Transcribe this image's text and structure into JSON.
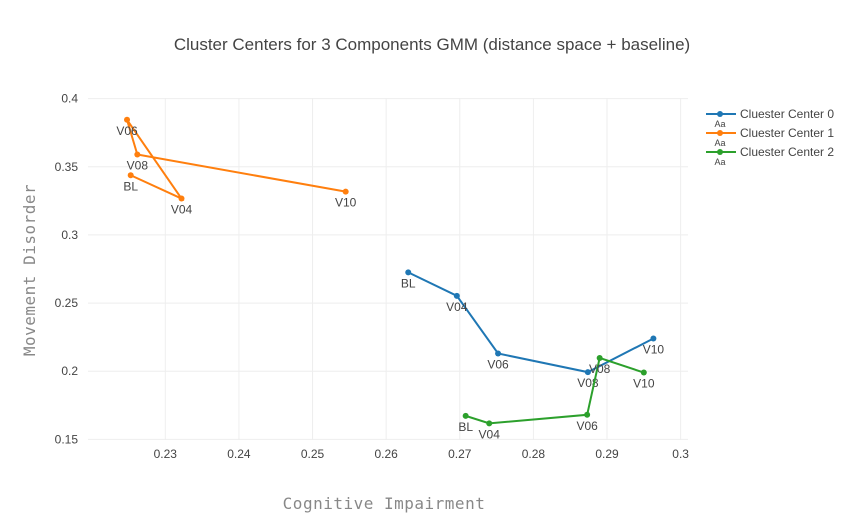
{
  "chart_data": {
    "type": "line",
    "title": "Cluster Centers for 3 Components GMM (distance space + baseline)",
    "xlabel": "Cognitive Impairment",
    "ylabel": "Movement Disorder",
    "xlim": [
      0.2195,
      0.301
    ],
    "ylim": [
      0.1495,
      0.4005
    ],
    "xticks": [
      0.23,
      0.24,
      0.25,
      0.26,
      0.27,
      0.28,
      0.29,
      0.3
    ],
    "xtick_labels": [
      "0.23",
      "0.24",
      "0.25",
      "0.26",
      "0.27",
      "0.28",
      "0.29",
      "0.3"
    ],
    "yticks": [
      0.15,
      0.2,
      0.25,
      0.3,
      0.35,
      0.4
    ],
    "ytick_labels": [
      "0.15",
      "0.2",
      "0.25",
      "0.3",
      "0.35",
      "0.4"
    ],
    "grid": true,
    "legend_position": "top-right",
    "legend_symbol_text": "Aa",
    "series": [
      {
        "name": "Cluester Center 0",
        "color": "#1f77b4",
        "labels": [
          "BL",
          "V04",
          "V06",
          "V08",
          "V10"
        ],
        "x": [
          0.263,
          0.2696,
          0.2752,
          0.2874,
          0.2963
        ],
        "y": [
          0.2725,
          0.2553,
          0.213,
          0.1993,
          0.224
        ]
      },
      {
        "name": "Cluester Center 1",
        "color": "#ff7f0e",
        "labels": [
          "BL",
          "V04",
          "V06",
          "V08",
          "V10"
        ],
        "x": [
          0.2253,
          0.2322,
          0.2248,
          0.2262,
          0.2545
        ],
        "y": [
          0.3438,
          0.3267,
          0.3845,
          0.359,
          0.3318
        ]
      },
      {
        "name": "Cluester Center 2",
        "color": "#2ca02c",
        "labels": [
          "BL",
          "V04",
          "V06",
          "V08",
          "V10"
        ],
        "x": [
          0.2708,
          0.274,
          0.2873,
          0.289,
          0.295
        ],
        "y": [
          0.1672,
          0.1617,
          0.168,
          0.2097,
          0.199
        ]
      }
    ]
  }
}
